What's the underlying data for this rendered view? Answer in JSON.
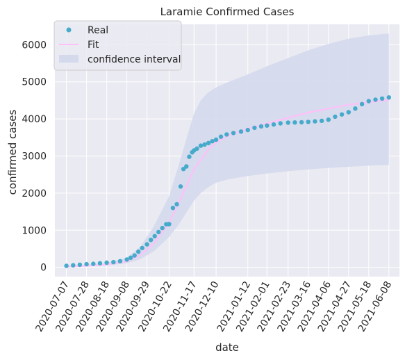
{
  "chart_data": {
    "type": "scatter",
    "title": "Laramie Confirmed Cases",
    "xlabel": "date",
    "ylabel": "confirmed cases",
    "xlim": [
      "2020-06-25",
      "2021-06-19"
    ],
    "ylim": [
      -250,
      6550
    ],
    "x_ticks": [
      "2020-07-07",
      "2020-07-28",
      "2020-08-18",
      "2020-09-08",
      "2020-09-29",
      "2020-10-22",
      "2020-11-17",
      "2020-12-10",
      "2021-01-12",
      "2021-02-01",
      "2021-02-23",
      "2021-03-16",
      "2021-04-06",
      "2021-04-27",
      "2021-05-18",
      "2021-06-08"
    ],
    "y_ticks": [
      0,
      1000,
      2000,
      3000,
      4000,
      5000,
      6000
    ],
    "grid": true,
    "legend_position": "top-left",
    "colors": {
      "background": "#eaeaf2",
      "grid": "#ffffff",
      "real": "#46aacb",
      "fit": "#ffc0fa",
      "ci": "#d4d9ec"
    },
    "legend": [
      {
        "key": "real",
        "label": "Real"
      },
      {
        "key": "fit",
        "label": "Fit"
      },
      {
        "key": "ci",
        "label": "confidence interval"
      }
    ],
    "series": [
      {
        "name": "Real",
        "kind": "points",
        "x": [
          "2020-07-07",
          "2020-07-14",
          "2020-07-21",
          "2020-07-28",
          "2020-08-04",
          "2020-08-11",
          "2020-08-18",
          "2020-08-25",
          "2020-09-01",
          "2020-09-08",
          "2020-09-12",
          "2020-09-16",
          "2020-09-20",
          "2020-09-24",
          "2020-09-29",
          "2020-10-03",
          "2020-10-07",
          "2020-10-11",
          "2020-10-15",
          "2020-10-19",
          "2020-10-22",
          "2020-10-26",
          "2020-10-30",
          "2020-11-03",
          "2020-11-06",
          "2020-11-09",
          "2020-11-12",
          "2020-11-15",
          "2020-11-17",
          "2020-11-20",
          "2020-11-24",
          "2020-11-28",
          "2020-12-02",
          "2020-12-06",
          "2020-12-10",
          "2020-12-15",
          "2020-12-21",
          "2020-12-28",
          "2021-01-05",
          "2021-01-12",
          "2021-01-19",
          "2021-01-26",
          "2021-02-01",
          "2021-02-08",
          "2021-02-15",
          "2021-02-23",
          "2021-03-02",
          "2021-03-09",
          "2021-03-16",
          "2021-03-23",
          "2021-03-30",
          "2021-04-06",
          "2021-04-13",
          "2021-04-20",
          "2021-04-27",
          "2021-05-04",
          "2021-05-11",
          "2021-05-18",
          "2021-05-25",
          "2021-06-01",
          "2021-06-08"
        ],
        "values": [
          40,
          55,
          70,
          85,
          95,
          110,
          125,
          140,
          165,
          210,
          260,
          320,
          420,
          520,
          620,
          740,
          840,
          950,
          1060,
          1160,
          1165,
          1600,
          1700,
          2180,
          2650,
          2720,
          2980,
          3100,
          3150,
          3200,
          3280,
          3310,
          3350,
          3400,
          3440,
          3520,
          3580,
          3620,
          3660,
          3700,
          3760,
          3800,
          3820,
          3850,
          3880,
          3900,
          3905,
          3910,
          3920,
          3935,
          3950,
          3980,
          4060,
          4120,
          4180,
          4280,
          4400,
          4480,
          4520,
          4550,
          4580
        ]
      },
      {
        "name": "Fit",
        "kind": "line",
        "x": [
          "2020-07-07",
          "2020-07-28",
          "2020-08-18",
          "2020-09-08",
          "2020-09-22",
          "2020-10-06",
          "2020-10-22",
          "2020-11-05",
          "2020-11-17",
          "2020-12-01",
          "2020-12-10",
          "2020-12-24",
          "2021-01-12",
          "2021-02-01",
          "2021-02-23",
          "2021-03-16",
          "2021-04-06",
          "2021-04-27",
          "2021-05-18",
          "2021-06-08"
        ],
        "values": [
          20,
          40,
          75,
          160,
          330,
          640,
          1200,
          1960,
          2650,
          3150,
          3370,
          3570,
          3730,
          3880,
          4030,
          4170,
          4280,
          4380,
          4450,
          4510
        ]
      },
      {
        "name": "confidence interval",
        "kind": "band",
        "x": [
          "2020-07-07",
          "2020-07-28",
          "2020-08-18",
          "2020-09-08",
          "2020-09-22",
          "2020-10-06",
          "2020-10-22",
          "2020-11-01",
          "2020-11-10",
          "2020-11-17",
          "2020-11-24",
          "2020-12-01",
          "2020-12-10",
          "2020-12-24",
          "2021-01-12",
          "2021-02-01",
          "2021-02-23",
          "2021-03-16",
          "2021-04-06",
          "2021-04-27",
          "2021-05-18",
          "2021-06-08"
        ],
        "lower": [
          10,
          25,
          55,
          110,
          220,
          430,
          820,
          1150,
          1520,
          1800,
          2000,
          2150,
          2280,
          2380,
          2460,
          2530,
          2590,
          2640,
          2680,
          2710,
          2740,
          2760
        ],
        "upper": [
          40,
          70,
          120,
          260,
          560,
          1100,
          1920,
          2750,
          3550,
          4150,
          4500,
          4700,
          4850,
          5010,
          5200,
          5420,
          5640,
          5850,
          6020,
          6160,
          6250,
          6300
        ]
      }
    ]
  }
}
